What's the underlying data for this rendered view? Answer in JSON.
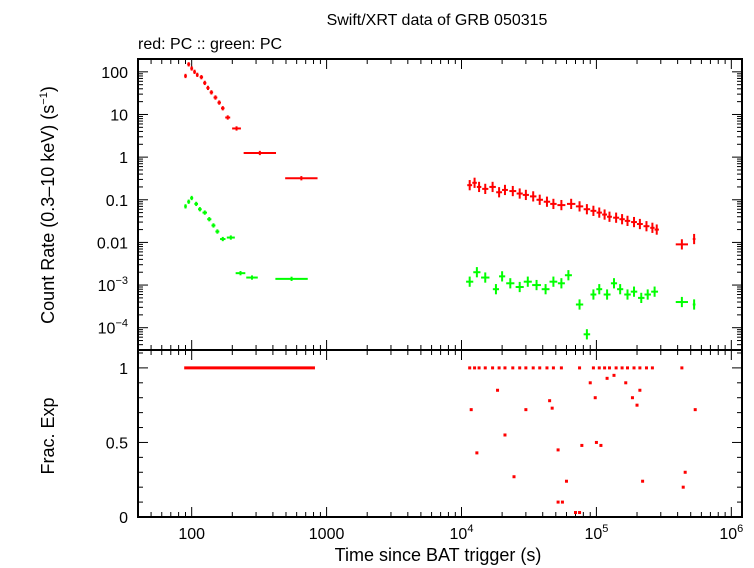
{
  "title": "Swift/XRT data of GRB 050315",
  "subtitle": "red: PC  :: green: PC",
  "colors": {
    "red": "#ff0000",
    "green": "#00ff00",
    "axis": "#000000"
  },
  "chart_data": [
    {
      "type": "scatter",
      "x_scale": "log",
      "y_scale": "log",
      "xlim": [
        40,
        1200000
      ],
      "ylim": [
        3e-05,
        200
      ],
      "ylabel": "Count Rate (0.3–10 keV) (s",
      "ylabel_sup": "−1",
      "ylabel_end": ")",
      "y_ticks": [
        {
          "value": 100,
          "label": "100",
          "sup": ""
        },
        {
          "value": 10,
          "label": "10",
          "sup": ""
        },
        {
          "value": 1,
          "label": "1",
          "sup": ""
        },
        {
          "value": 0.1,
          "label": "0.1",
          "sup": ""
        },
        {
          "value": 0.01,
          "label": "0.01",
          "sup": ""
        },
        {
          "value": 0.001,
          "label": "10",
          "sup": "−3"
        },
        {
          "value": 0.0001,
          "label": "10",
          "sup": "−4"
        }
      ],
      "series": [
        {
          "name": "PC",
          "color": "#ff0000",
          "points": [
            [
              90,
              80
            ],
            [
              95,
              150
            ],
            [
              100,
              120
            ],
            [
              105,
              100
            ],
            [
              110,
              85
            ],
            [
              118,
              75
            ],
            [
              125,
              55
            ],
            [
              132,
              42
            ],
            [
              140,
              33
            ],
            [
              150,
              25
            ],
            [
              160,
              19
            ],
            [
              170,
              14
            ],
            [
              185,
              8.5
            ],
            [
              215,
              4.7
            ],
            [
              320,
              1.25
            ],
            [
              650,
              0.32
            ],
            [
              11500,
              0.22
            ],
            [
              12500,
              0.25
            ],
            [
              13500,
              0.2
            ],
            [
              15000,
              0.18
            ],
            [
              17000,
              0.2
            ],
            [
              19000,
              0.15
            ],
            [
              21000,
              0.17
            ],
            [
              24000,
              0.16
            ],
            [
              27000,
              0.14
            ],
            [
              30000,
              0.13
            ],
            [
              34000,
              0.12
            ],
            [
              38000,
              0.1
            ],
            [
              43000,
              0.09
            ],
            [
              48000,
              0.08
            ],
            [
              55000,
              0.075
            ],
            [
              65000,
              0.08
            ],
            [
              75000,
              0.07
            ],
            [
              85000,
              0.06
            ],
            [
              95000,
              0.055
            ],
            [
              105000,
              0.05
            ],
            [
              115000,
              0.045
            ],
            [
              125000,
              0.04
            ],
            [
              140000,
              0.038
            ],
            [
              155000,
              0.035
            ],
            [
              170000,
              0.032
            ],
            [
              190000,
              0.03
            ],
            [
              210000,
              0.027
            ],
            [
              235000,
              0.024
            ],
            [
              260000,
              0.022
            ],
            [
              280000,
              0.02
            ],
            [
              430000,
              0.009
            ],
            [
              530000,
              0.012
            ]
          ]
        },
        {
          "name": "PC",
          "color": "#00ff00",
          "points": [
            [
              90,
              0.07
            ],
            [
              95,
              0.09
            ],
            [
              100,
              0.11
            ],
            [
              108,
              0.08
            ],
            [
              115,
              0.06
            ],
            [
              125,
              0.05
            ],
            [
              135,
              0.035
            ],
            [
              145,
              0.025
            ],
            [
              155,
              0.018
            ],
            [
              170,
              0.012
            ],
            [
              195,
              0.013
            ],
            [
              230,
              0.0019
            ],
            [
              280,
              0.0015
            ],
            [
              550,
              0.0014
            ],
            [
              11500,
              0.0012
            ],
            [
              13000,
              0.002
            ],
            [
              15000,
              0.0015
            ],
            [
              18000,
              0.0008
            ],
            [
              20000,
              0.0016
            ],
            [
              23000,
              0.0011
            ],
            [
              27000,
              0.0009
            ],
            [
              31000,
              0.0012
            ],
            [
              36000,
              0.001
            ],
            [
              42000,
              0.0008
            ],
            [
              48000,
              0.0012
            ],
            [
              55000,
              0.0011
            ],
            [
              62000,
              0.0017
            ],
            [
              75000,
              0.00035
            ],
            [
              85000,
              7e-05
            ],
            [
              95000,
              0.0006
            ],
            [
              105000,
              0.0008
            ],
            [
              120000,
              0.0006
            ],
            [
              135000,
              0.0011
            ],
            [
              150000,
              0.0008
            ],
            [
              170000,
              0.0006
            ],
            [
              190000,
              0.0007
            ],
            [
              215000,
              0.0005
            ],
            [
              240000,
              0.0006
            ],
            [
              270000,
              0.0007
            ],
            [
              430000,
              0.0004
            ],
            [
              530000,
              0.00035
            ]
          ]
        }
      ]
    },
    {
      "type": "scatter",
      "x_scale": "log",
      "xlim": [
        40,
        1200000
      ],
      "ylim": [
        0,
        1.12
      ],
      "xlabel": "Time since BAT trigger (s)",
      "ylabel": "Frac. Exp",
      "x_ticks": [
        {
          "value": 100,
          "label": "100",
          "sup": ""
        },
        {
          "value": 1000,
          "label": "1000",
          "sup": ""
        },
        {
          "value": 10000,
          "label": "10",
          "sup": "4"
        },
        {
          "value": 100000,
          "label": "10",
          "sup": "5"
        },
        {
          "value": 1000000,
          "label": "10",
          "sup": "6"
        }
      ],
      "y_ticks": [
        {
          "value": 1,
          "label": "1"
        },
        {
          "value": 0.5,
          "label": "0.5"
        },
        {
          "value": 0,
          "label": "0"
        }
      ],
      "series": [
        {
          "color": "#ff0000",
          "segment": {
            "x": [
              88,
              820
            ],
            "y": 1.0
          },
          "points": [
            [
              11500,
              1.0
            ],
            [
              12500,
              1.0
            ],
            [
              13500,
              1.0
            ],
            [
              15000,
              1.0
            ],
            [
              17000,
              1.0
            ],
            [
              19000,
              1.0
            ],
            [
              21000,
              1.0
            ],
            [
              24000,
              1.0
            ],
            [
              27000,
              1.0
            ],
            [
              30000,
              1.0
            ],
            [
              34000,
              1.0
            ],
            [
              38000,
              1.0
            ],
            [
              43000,
              1.0
            ],
            [
              48000,
              1.0
            ],
            [
              55000,
              1.0
            ],
            [
              75000,
              1.0
            ],
            [
              95000,
              1.0
            ],
            [
              105000,
              1.0
            ],
            [
              115000,
              1.0
            ],
            [
              125000,
              1.0
            ],
            [
              140000,
              1.0
            ],
            [
              155000,
              1.0
            ],
            [
              170000,
              1.0
            ],
            [
              190000,
              1.0
            ],
            [
              210000,
              1.0
            ],
            [
              235000,
              1.0
            ],
            [
              260000,
              1.0
            ],
            [
              430000,
              1.0
            ],
            [
              11800,
              0.72
            ],
            [
              13000,
              0.43
            ],
            [
              18500,
              0.85
            ],
            [
              21000,
              0.55
            ],
            [
              24500,
              0.27
            ],
            [
              30000,
              0.72
            ],
            [
              45000,
              0.78
            ],
            [
              47000,
              0.73
            ],
            [
              52000,
              0.45
            ],
            [
              60000,
              0.24
            ],
            [
              78000,
              0.48
            ],
            [
              90000,
              0.9
            ],
            [
              98000,
              0.8
            ],
            [
              100000,
              0.5
            ],
            [
              108000,
              0.48
            ],
            [
              120000,
              0.93
            ],
            [
              135000,
              0.95
            ],
            [
              165000,
              0.9
            ],
            [
              185000,
              0.8
            ],
            [
              200000,
              0.75
            ],
            [
              210000,
              0.85
            ],
            [
              220000,
              0.24
            ],
            [
              440000,
              0.2
            ],
            [
              455000,
              0.3
            ],
            [
              540000,
              0.72
            ],
            [
              52000,
              0.1
            ],
            [
              56000,
              0.1
            ],
            [
              70000,
              0.03
            ],
            [
              75000,
              0.03
            ]
          ]
        }
      ]
    }
  ]
}
